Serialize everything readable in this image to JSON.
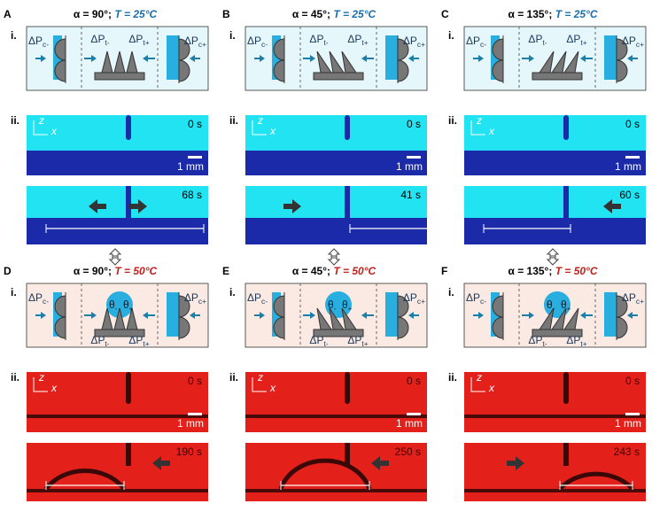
{
  "panels": [
    {
      "letter": "A",
      "alpha": "α = 90°; ",
      "temp": "T = 25°C",
      "roman_1": "i.",
      "roman_2": "ii.",
      "pressure_labels": [
        {
          "main": "ΔP",
          "sub": "c-"
        },
        {
          "main": "ΔP",
          "sub": "t-"
        },
        {
          "main": "ΔP",
          "sub": "t+"
        },
        {
          "main": "ΔP",
          "sub": "c+"
        }
      ],
      "theta_labels": [],
      "axis_z": "z",
      "axis_x": "x",
      "frame1_time": "0 s",
      "scale_bar": "1 mm",
      "frame2_time": "68 s"
    },
    {
      "letter": "B",
      "alpha": "α = 45°; ",
      "temp": "T = 25°C",
      "roman_1": "i.",
      "roman_2": "ii.",
      "pressure_labels": [
        {
          "main": "ΔP",
          "sub": "c-"
        },
        {
          "main": "ΔP",
          "sub": "t-"
        },
        {
          "main": "ΔP",
          "sub": "t+"
        },
        {
          "main": "ΔP",
          "sub": "c+"
        }
      ],
      "theta_labels": [],
      "axis_z": "z",
      "axis_x": "x",
      "frame1_time": "0 s",
      "scale_bar": "1 mm",
      "frame2_time": "41 s"
    },
    {
      "letter": "C",
      "alpha": "α = 135°; ",
      "temp": "T = 25°C",
      "roman_1": "i.",
      "roman_2": "ii.",
      "pressure_labels": [
        {
          "main": "ΔP",
          "sub": "c-"
        },
        {
          "main": "ΔP",
          "sub": "t-"
        },
        {
          "main": "ΔP",
          "sub": "t+"
        },
        {
          "main": "ΔP",
          "sub": "c+"
        }
      ],
      "theta_labels": [],
      "axis_z": "z",
      "axis_x": "x",
      "frame1_time": "0 s",
      "scale_bar": "1 mm",
      "frame2_time": "60 s"
    },
    {
      "letter": "D",
      "alpha": "α = 90°; ",
      "temp": "T = 50°C",
      "roman_1": "i.",
      "roman_2": "ii.",
      "pressure_labels": [
        {
          "main": "ΔP",
          "sub": "c-"
        },
        {
          "main": "ΔP",
          "sub": "t-"
        },
        {
          "main": "ΔP",
          "sub": "t+"
        },
        {
          "main": "ΔP",
          "sub": "c+"
        }
      ],
      "theta_labels": [
        {
          "main": "θ",
          "sub": "-"
        },
        {
          "main": "θ",
          "sub": "+"
        }
      ],
      "axis_z": "z",
      "axis_x": "x",
      "frame1_time": "0 s",
      "scale_bar": "1 mm",
      "frame2_time": "190 s"
    },
    {
      "letter": "E",
      "alpha": "α = 45°; ",
      "temp": "T = 50°C",
      "roman_1": "i.",
      "roman_2": "ii.",
      "pressure_labels": [
        {
          "main": "ΔP",
          "sub": "c-"
        },
        {
          "main": "ΔP",
          "sub": "t-"
        },
        {
          "main": "ΔP",
          "sub": "t+"
        },
        {
          "main": "ΔP",
          "sub": "c+"
        }
      ],
      "theta_labels": [
        {
          "main": "θ",
          "sub": "-"
        },
        {
          "main": "θ",
          "sub": "+"
        }
      ],
      "axis_z": "z",
      "axis_x": "x",
      "frame1_time": "0 s",
      "scale_bar": "1 mm",
      "frame2_time": "250 s"
    },
    {
      "letter": "F",
      "alpha": "α = 135°; ",
      "temp": "T = 50°C",
      "roman_1": "i.",
      "roman_2": "ii.",
      "pressure_labels": [
        {
          "main": "ΔP",
          "sub": "c-"
        },
        {
          "main": "ΔP",
          "sub": "t-"
        },
        {
          "main": "ΔP",
          "sub": "t+"
        },
        {
          "main": "ΔP",
          "sub": "c+"
        }
      ],
      "theta_labels": [
        {
          "main": "θ",
          "sub": "-"
        },
        {
          "main": "θ",
          "sub": "+"
        }
      ],
      "axis_z": "z",
      "axis_x": "x",
      "frame1_time": "0 s",
      "scale_bar": "1 mm",
      "frame2_time": "243 s"
    }
  ]
}
